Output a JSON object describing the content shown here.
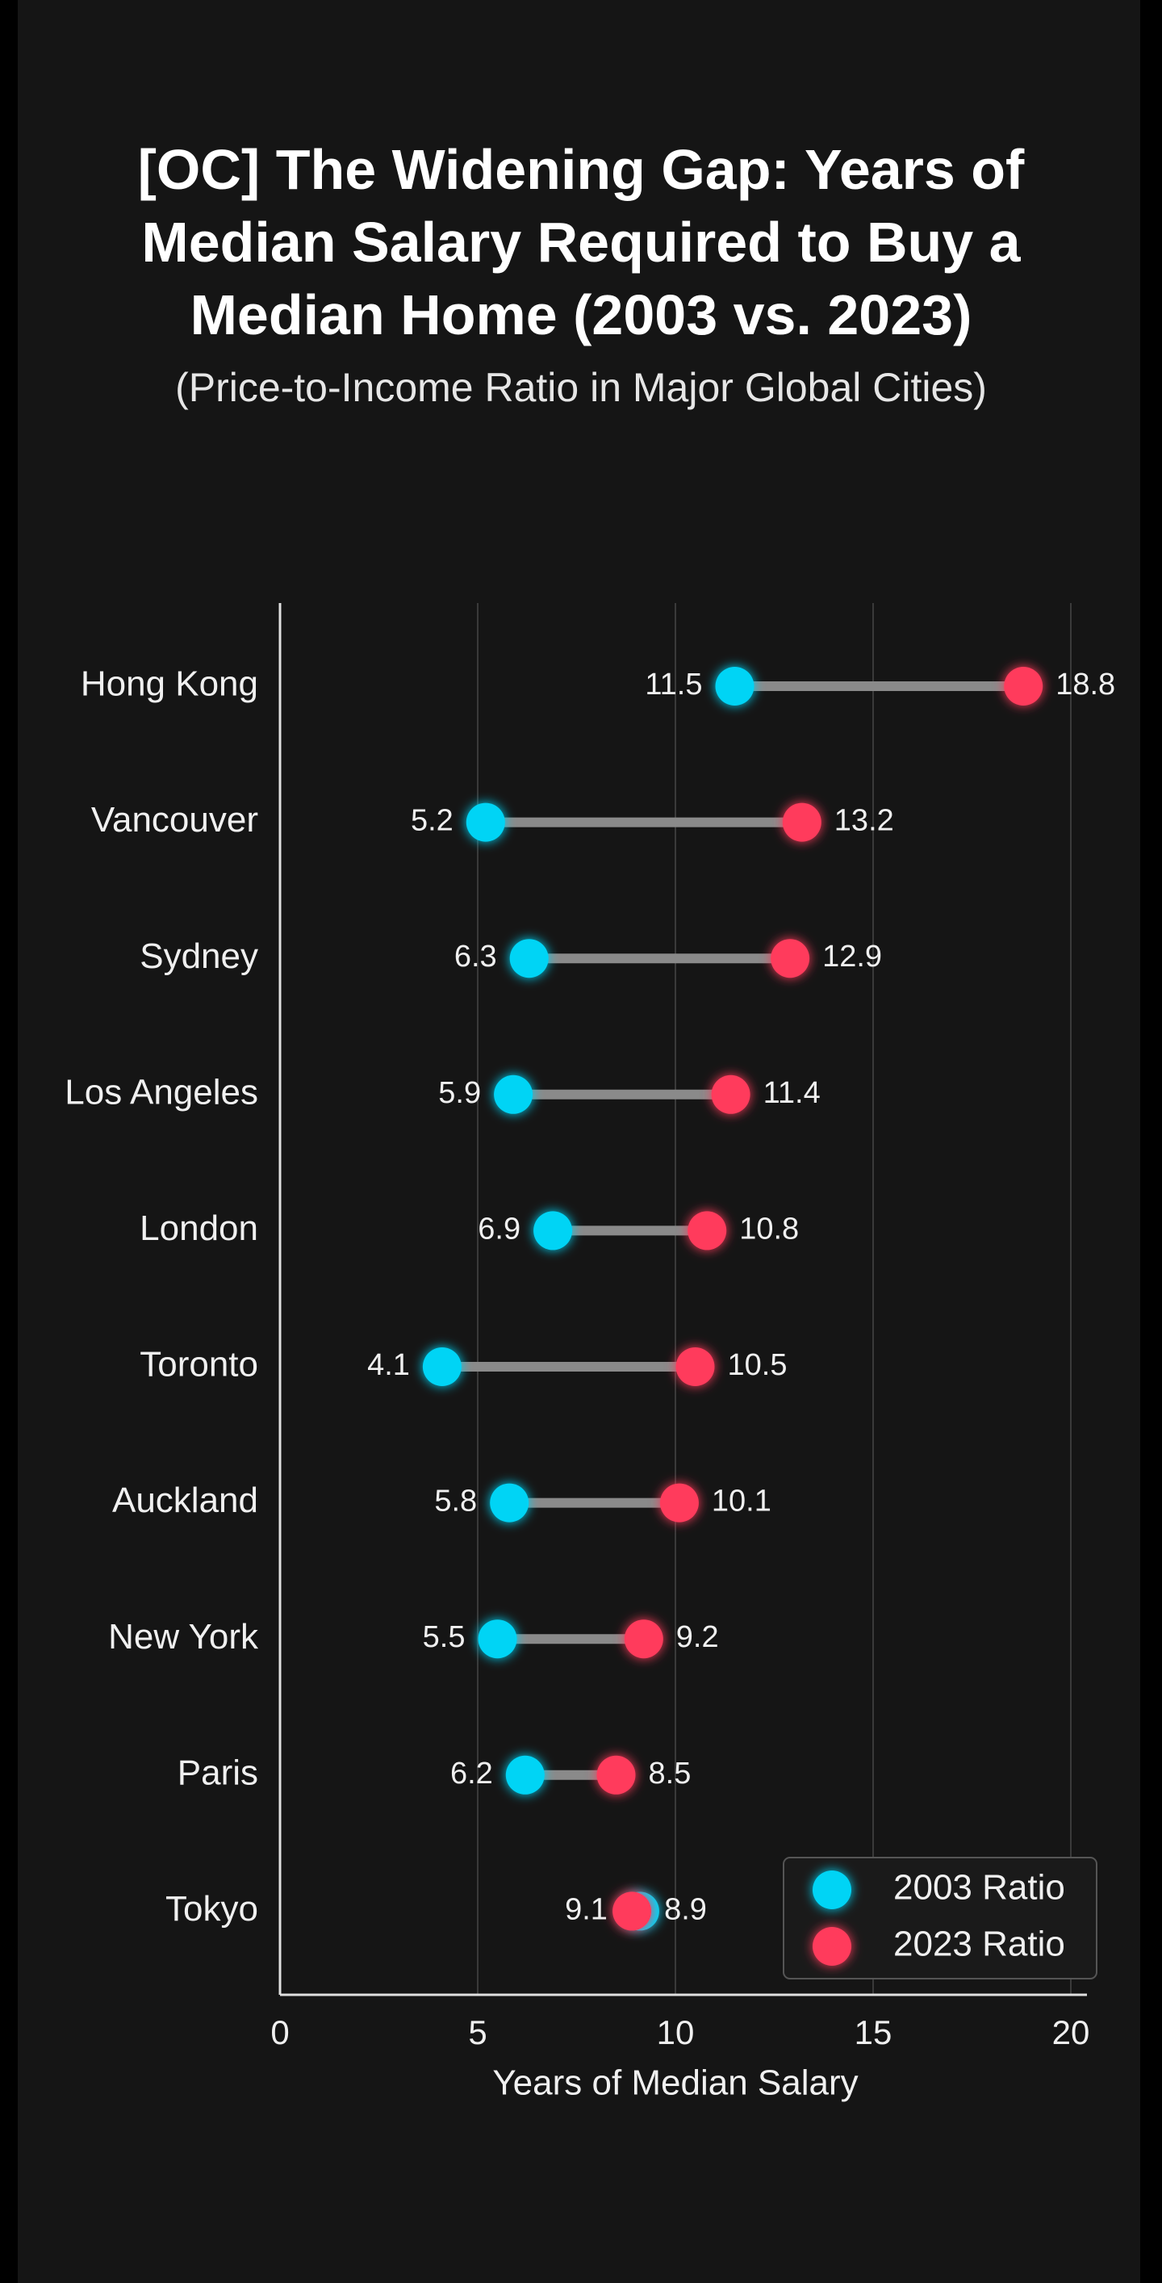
{
  "chart_data": {
    "type": "dumbbell",
    "title": "[OC] The Widening Gap: Years of Median Salary Required to Buy a Median Home (2003 vs. 2023)",
    "subtitle": "(Price-to-Income Ratio in Major Global Cities)",
    "x_label": "Years of Median Salary",
    "categories": [
      "Hong Kong",
      "Vancouver",
      "Sydney",
      "Los Angeles",
      "London",
      "Toronto",
      "Auckland",
      "New York",
      "Paris",
      "Tokyo"
    ],
    "series": [
      {
        "name": "2003 Ratio",
        "color": "#00d4f5",
        "values": [
          11.5,
          5.2,
          6.3,
          5.9,
          6.9,
          4.1,
          5.8,
          5.5,
          6.2,
          9.1
        ]
      },
      {
        "name": "2023 Ratio",
        "color": "#ff3b5c",
        "values": [
          18.8,
          13.2,
          12.9,
          11.4,
          10.8,
          10.5,
          10.1,
          9.2,
          8.5,
          8.9
        ]
      }
    ],
    "connector_color": "#8a8a8a",
    "xlim": [
      0,
      20
    ],
    "xticks": [
      0,
      5,
      10,
      15,
      20
    ],
    "grid": true,
    "legend": "lower right"
  }
}
